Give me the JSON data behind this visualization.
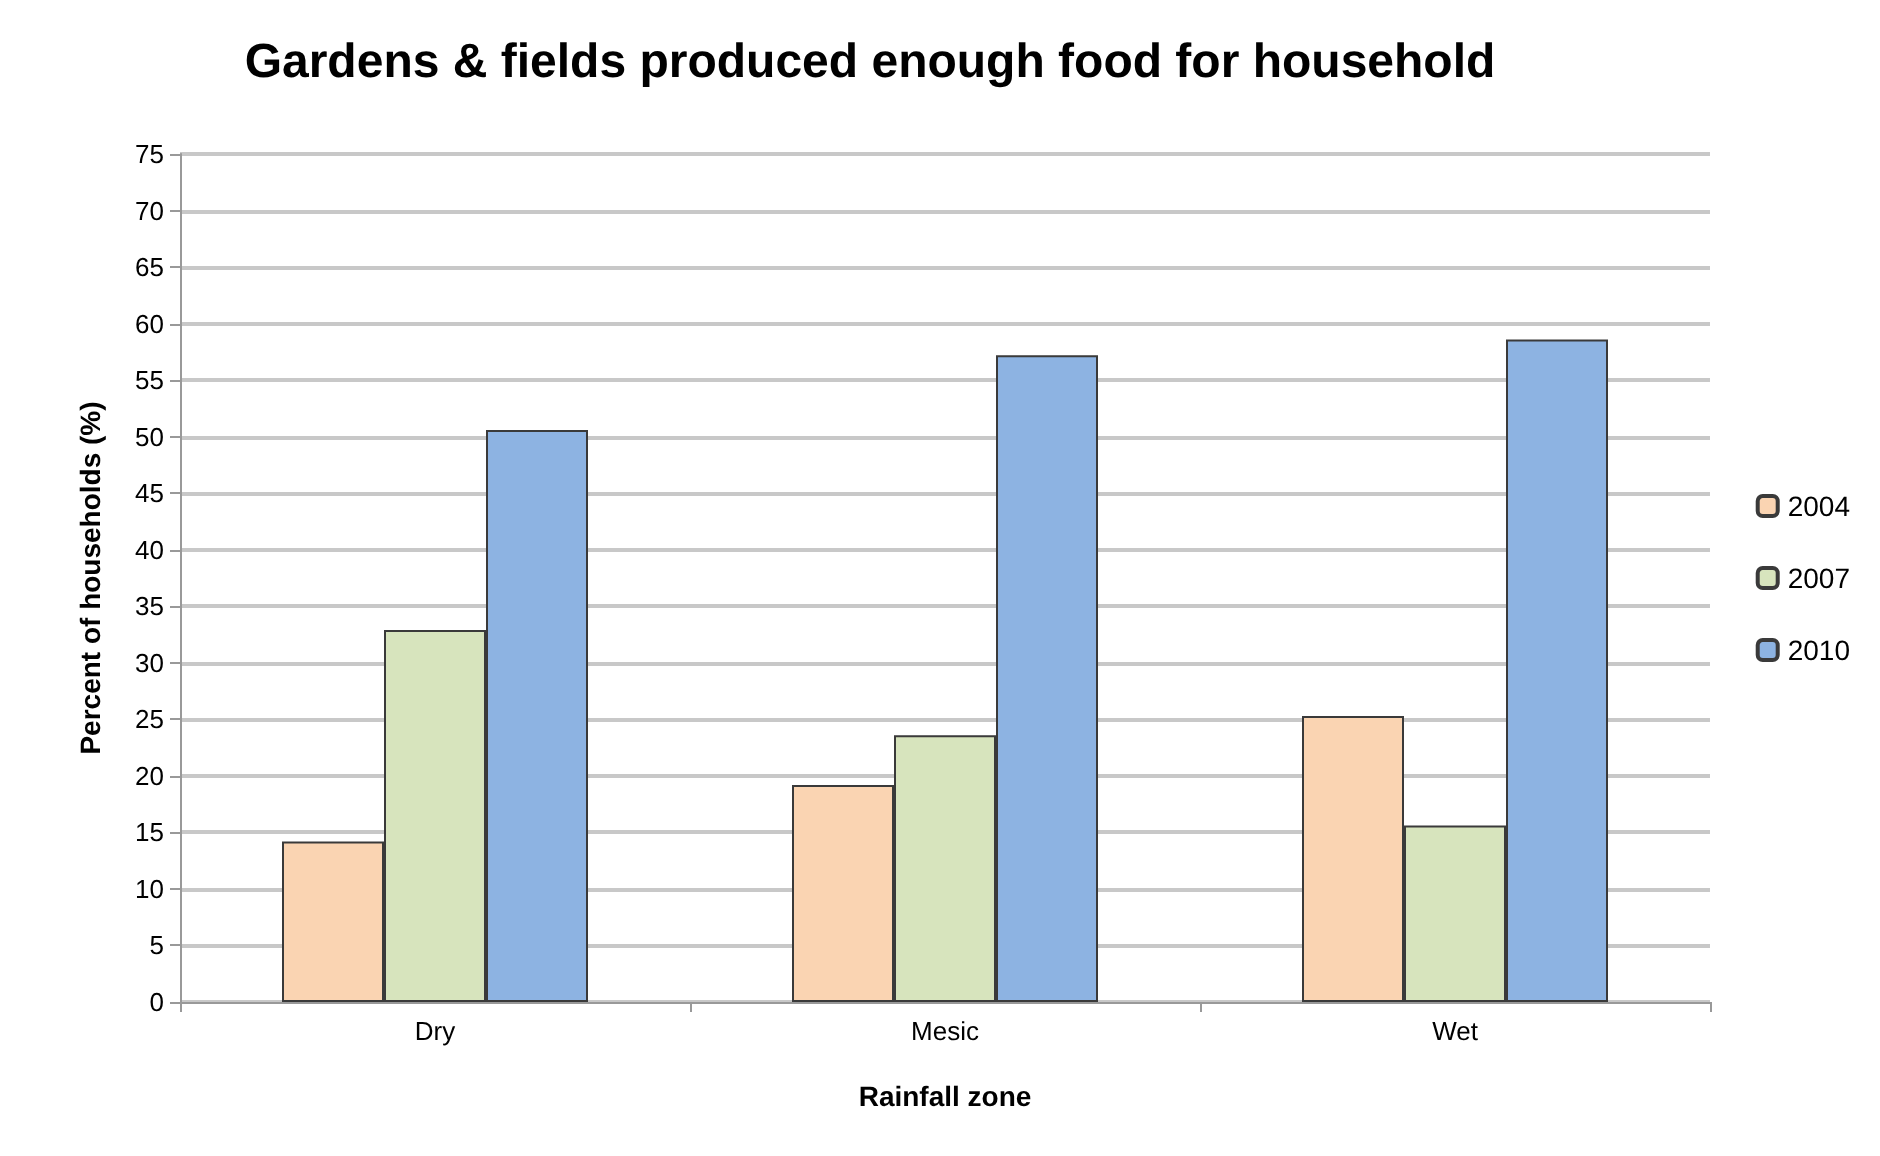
{
  "chart_data": {
    "type": "bar",
    "title": "Gardens & fields produced enough food for household",
    "xlabel": "Rainfall zone",
    "ylabel": "Percent of households (%)",
    "categories": [
      "Dry",
      "Mesic",
      "Wet"
    ],
    "series": [
      {
        "name": "2004",
        "color": "#fad4b2",
        "values": [
          14.2,
          19.2,
          25.3
        ]
      },
      {
        "name": "2007",
        "color": "#d7e4bd",
        "values": [
          32.9,
          23.6,
          15.6
        ]
      },
      {
        "name": "2010",
        "color": "#8db3e2",
        "values": [
          50.6,
          57.2,
          58.6
        ]
      }
    ],
    "ylim": [
      0,
      75
    ],
    "yticks": [
      0,
      5,
      10,
      15,
      20,
      25,
      30,
      35,
      40,
      45,
      50,
      55,
      60,
      65,
      70,
      75
    ],
    "grid": "y",
    "legend": "right"
  }
}
